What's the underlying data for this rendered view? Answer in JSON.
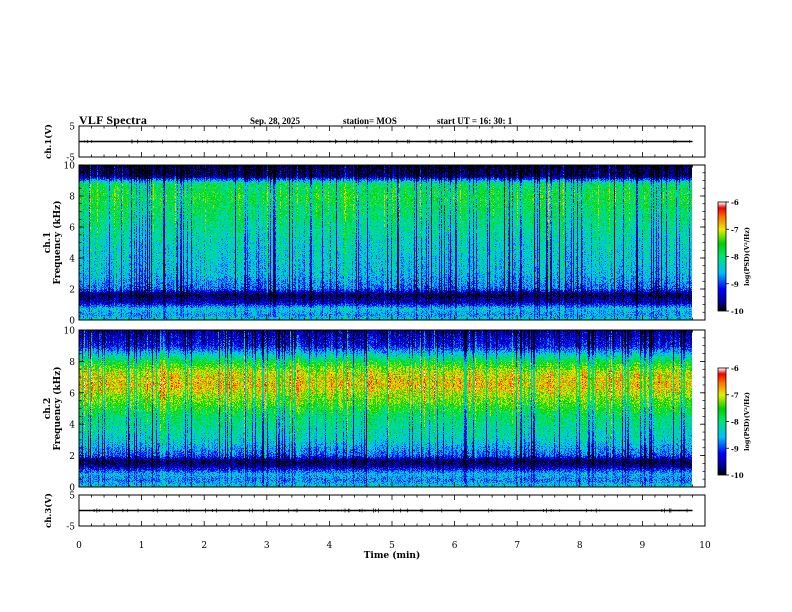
{
  "header": {
    "title": "VLF Spectra",
    "date": "Sep. 28, 2025",
    "station": "station= MOS",
    "start": "start  UT =   16: 30: 1"
  },
  "chart_data": [
    {
      "type": "line",
      "panel": "ch1-waveform",
      "ylabel": "ch.1(V)",
      "ylim": [
        -5,
        5
      ],
      "yticks": [
        "5",
        "-5"
      ],
      "xlim": [
        0,
        10
      ],
      "baseline_value": 0,
      "data_end_min": 9.8
    },
    {
      "type": "heatmap",
      "panel": "ch1-spectrogram",
      "ylabel": "ch.1 Frequency (kHz)",
      "ylim": [
        0,
        10
      ],
      "yticks": [
        "0",
        "2",
        "4",
        "6",
        "8",
        "10"
      ],
      "xlim": [
        0,
        10
      ],
      "data_end_min": 9.8,
      "colorbar": {
        "label": "log(PSD)(V²/Hz)",
        "range": [
          -10,
          -6
        ],
        "ticks": [
          "-6",
          "-7",
          "-8",
          "-9",
          "-10"
        ]
      },
      "profile": [
        {
          "f": 0.0,
          "v": -8.3
        },
        {
          "f": 0.3,
          "v": -8.7
        },
        {
          "f": 0.7,
          "v": -8.4
        },
        {
          "f": 1.1,
          "v": -9.5
        },
        {
          "f": 1.3,
          "v": -9.6
        },
        {
          "f": 1.6,
          "v": -9.9
        },
        {
          "f": 2.0,
          "v": -8.9
        },
        {
          "f": 3.0,
          "v": -8.5
        },
        {
          "f": 5.0,
          "v": -8.3
        },
        {
          "f": 7.0,
          "v": -7.9
        },
        {
          "f": 8.0,
          "v": -7.7
        },
        {
          "f": 8.8,
          "v": -7.9
        },
        {
          "f": 9.1,
          "v": -9.0
        },
        {
          "f": 9.3,
          "v": -9.8
        },
        {
          "f": 10.0,
          "v": -10.0
        }
      ]
    },
    {
      "type": "heatmap",
      "panel": "ch2-spectrogram",
      "ylabel": "ch.2 Frequency (kHz)",
      "ylim": [
        0,
        10
      ],
      "yticks": [
        "0",
        "2",
        "4",
        "6",
        "8",
        "10"
      ],
      "xlim": [
        0,
        10
      ],
      "data_end_min": 9.8,
      "colorbar": {
        "label": "log(PSD)(V²/Hz)",
        "range": [
          -10,
          -6
        ],
        "ticks": [
          "-6",
          "-7",
          "-8",
          "-9",
          "-10"
        ]
      },
      "profile": [
        {
          "f": 0.0,
          "v": -8.3
        },
        {
          "f": 0.4,
          "v": -8.8
        },
        {
          "f": 0.8,
          "v": -8.5
        },
        {
          "f": 1.3,
          "v": -9.6
        },
        {
          "f": 1.6,
          "v": -9.9
        },
        {
          "f": 2.0,
          "v": -8.9
        },
        {
          "f": 3.0,
          "v": -8.3
        },
        {
          "f": 4.5,
          "v": -7.9
        },
        {
          "f": 5.5,
          "v": -7.3
        },
        {
          "f": 6.5,
          "v": -6.8
        },
        {
          "f": 7.3,
          "v": -7.0
        },
        {
          "f": 8.0,
          "v": -7.7
        },
        {
          "f": 8.5,
          "v": -8.4
        },
        {
          "f": 9.0,
          "v": -9.2
        },
        {
          "f": 10.0,
          "v": -9.6
        }
      ]
    },
    {
      "type": "line",
      "panel": "ch3-waveform",
      "ylabel": "ch.3(V)",
      "ylim": [
        -5,
        5
      ],
      "yticks": [
        "5",
        "-5"
      ],
      "xlim": [
        0,
        10
      ],
      "baseline_value": 0,
      "data_end_min": 9.8
    }
  ],
  "xaxis": {
    "label": "Time (min)",
    "ticks": [
      "0",
      "1",
      "2",
      "3",
      "4",
      "5",
      "6",
      "7",
      "8",
      "9",
      "10"
    ]
  }
}
